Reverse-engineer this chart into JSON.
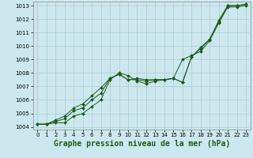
{
  "title": "Graphe pression niveau de la mer (hPa)",
  "title_fontsize": 7.0,
  "xlim": [
    -0.5,
    23.5
  ],
  "ylim": [
    1003.8,
    1013.3
  ],
  "yticks": [
    1004,
    1005,
    1006,
    1007,
    1008,
    1009,
    1010,
    1011,
    1012,
    1013
  ],
  "xticks": [
    0,
    1,
    2,
    3,
    4,
    5,
    6,
    7,
    8,
    9,
    10,
    11,
    12,
    13,
    14,
    15,
    16,
    17,
    18,
    19,
    20,
    21,
    22,
    23
  ],
  "bg_color": "#cce8ee",
  "grid_color": "#aacccc",
  "line_color": "#1a5c1a",
  "series": [
    [
      1004.2,
      1004.2,
      1004.3,
      1004.3,
      1004.8,
      1005.0,
      1005.5,
      1006.0,
      1007.5,
      1008.0,
      1007.8,
      1007.4,
      1007.2,
      1007.4,
      1007.5,
      1007.6,
      1007.3,
      1009.2,
      1009.9,
      1010.5,
      1011.8,
      1013.0,
      1013.0,
      1013.1
    ],
    [
      1004.2,
      1004.2,
      1004.4,
      1004.6,
      1005.2,
      1005.4,
      1006.0,
      1006.5,
      1007.6,
      1007.9,
      1007.5,
      1007.5,
      1007.4,
      1007.5,
      1007.5,
      1007.6,
      1007.3,
      1009.2,
      1009.8,
      1010.5,
      1011.9,
      1013.0,
      1013.0,
      1013.1
    ],
    [
      1004.2,
      1004.2,
      1004.5,
      1004.8,
      1005.4,
      1005.7,
      1006.3,
      1006.9,
      1007.6,
      1007.9,
      1007.5,
      1007.6,
      1007.5,
      1007.5,
      1007.5,
      1007.6,
      1009.0,
      1009.3,
      1009.6,
      1010.4,
      1011.7,
      1012.9,
      1012.9,
      1013.0
    ]
  ]
}
